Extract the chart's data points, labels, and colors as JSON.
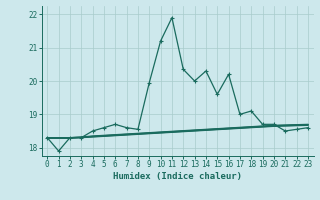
{
  "xlabel": "Humidex (Indice chaleur)",
  "background_color": "#cde8ec",
  "grid_color": "#a8cccc",
  "line_color": "#1a6b5e",
  "xlim": [
    -0.5,
    23.5
  ],
  "ylim": [
    17.75,
    22.25
  ],
  "yticks": [
    18,
    19,
    20,
    21,
    22
  ],
  "xticks": [
    0,
    1,
    2,
    3,
    4,
    5,
    6,
    7,
    8,
    9,
    10,
    11,
    12,
    13,
    14,
    15,
    16,
    17,
    18,
    19,
    20,
    21,
    22,
    23
  ],
  "main_series_x": [
    0,
    1,
    2,
    3,
    4,
    5,
    6,
    7,
    8,
    9,
    10,
    11,
    12,
    13,
    14,
    15,
    16,
    17,
    18,
    19,
    20,
    21,
    22,
    23
  ],
  "main_series_y": [
    18.3,
    17.9,
    18.3,
    18.3,
    18.5,
    18.6,
    18.7,
    18.6,
    18.55,
    19.95,
    21.2,
    21.9,
    20.35,
    20.0,
    20.3,
    19.6,
    20.2,
    19.0,
    19.1,
    18.7,
    18.7,
    18.5,
    18.55,
    18.6
  ],
  "flat_series": [
    [
      18.28,
      18.28,
      18.28,
      18.3,
      18.32,
      18.34,
      18.36,
      18.38,
      18.4,
      18.42,
      18.44,
      18.46,
      18.48,
      18.5,
      18.52,
      18.54,
      18.56,
      18.58,
      18.6,
      18.62,
      18.64,
      18.65,
      18.66,
      18.67
    ],
    [
      18.3,
      18.3,
      18.3,
      18.31,
      18.33,
      18.35,
      18.37,
      18.39,
      18.41,
      18.43,
      18.45,
      18.47,
      18.49,
      18.51,
      18.53,
      18.55,
      18.57,
      18.59,
      18.61,
      18.63,
      18.65,
      18.66,
      18.67,
      18.68
    ],
    [
      18.3,
      18.3,
      18.3,
      18.31,
      18.34,
      18.36,
      18.38,
      18.4,
      18.42,
      18.44,
      18.46,
      18.48,
      18.5,
      18.52,
      18.54,
      18.56,
      18.58,
      18.6,
      18.62,
      18.64,
      18.66,
      18.67,
      18.68,
      18.69
    ],
    [
      18.3,
      18.3,
      18.3,
      18.32,
      18.35,
      18.37,
      18.39,
      18.41,
      18.43,
      18.45,
      18.47,
      18.49,
      18.51,
      18.53,
      18.55,
      18.57,
      18.59,
      18.61,
      18.63,
      18.65,
      18.67,
      18.68,
      18.69,
      18.7
    ]
  ]
}
